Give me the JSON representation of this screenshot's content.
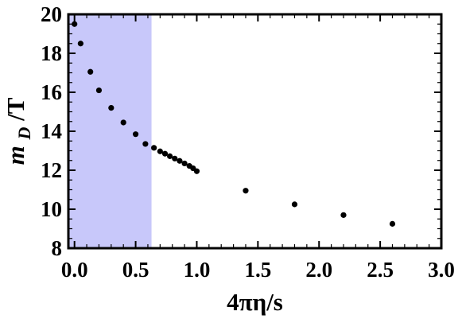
{
  "chart_data": {
    "type": "scatter",
    "title": "",
    "xlabel": "4πη/s",
    "ylabel": "m_D/T",
    "ylabel_main": "m",
    "ylabel_sub": "D",
    "ylabel_tail": "/T",
    "xlim": [
      -0.05,
      3.0
    ],
    "ylim": [
      8,
      20
    ],
    "x_ticks": [
      "0.0",
      "0.5",
      "1.0",
      "1.5",
      "2.0",
      "2.5",
      "3.0"
    ],
    "y_ticks": [
      "8",
      "10",
      "12",
      "14",
      "16",
      "18",
      "20"
    ],
    "grid": false,
    "legend": "none",
    "shaded_region": {
      "x": [
        -0.05,
        0.63
      ],
      "color": "#c8c8fa"
    },
    "point_color": "#000000",
    "series": [
      {
        "x": [
          0.0,
          0.05,
          0.13,
          0.2,
          0.3,
          0.4,
          0.5,
          0.58,
          0.65,
          0.7,
          0.74,
          0.78,
          0.82,
          0.86,
          0.9,
          0.94,
          0.97,
          1.0,
          1.4,
          1.8,
          2.2,
          2.6
        ],
        "values": [
          19.5,
          18.5,
          17.05,
          16.1,
          15.2,
          14.45,
          13.85,
          13.35,
          13.15,
          12.97,
          12.85,
          12.72,
          12.6,
          12.48,
          12.35,
          12.22,
          12.1,
          11.95,
          10.95,
          10.25,
          9.7,
          9.25
        ]
      }
    ]
  }
}
